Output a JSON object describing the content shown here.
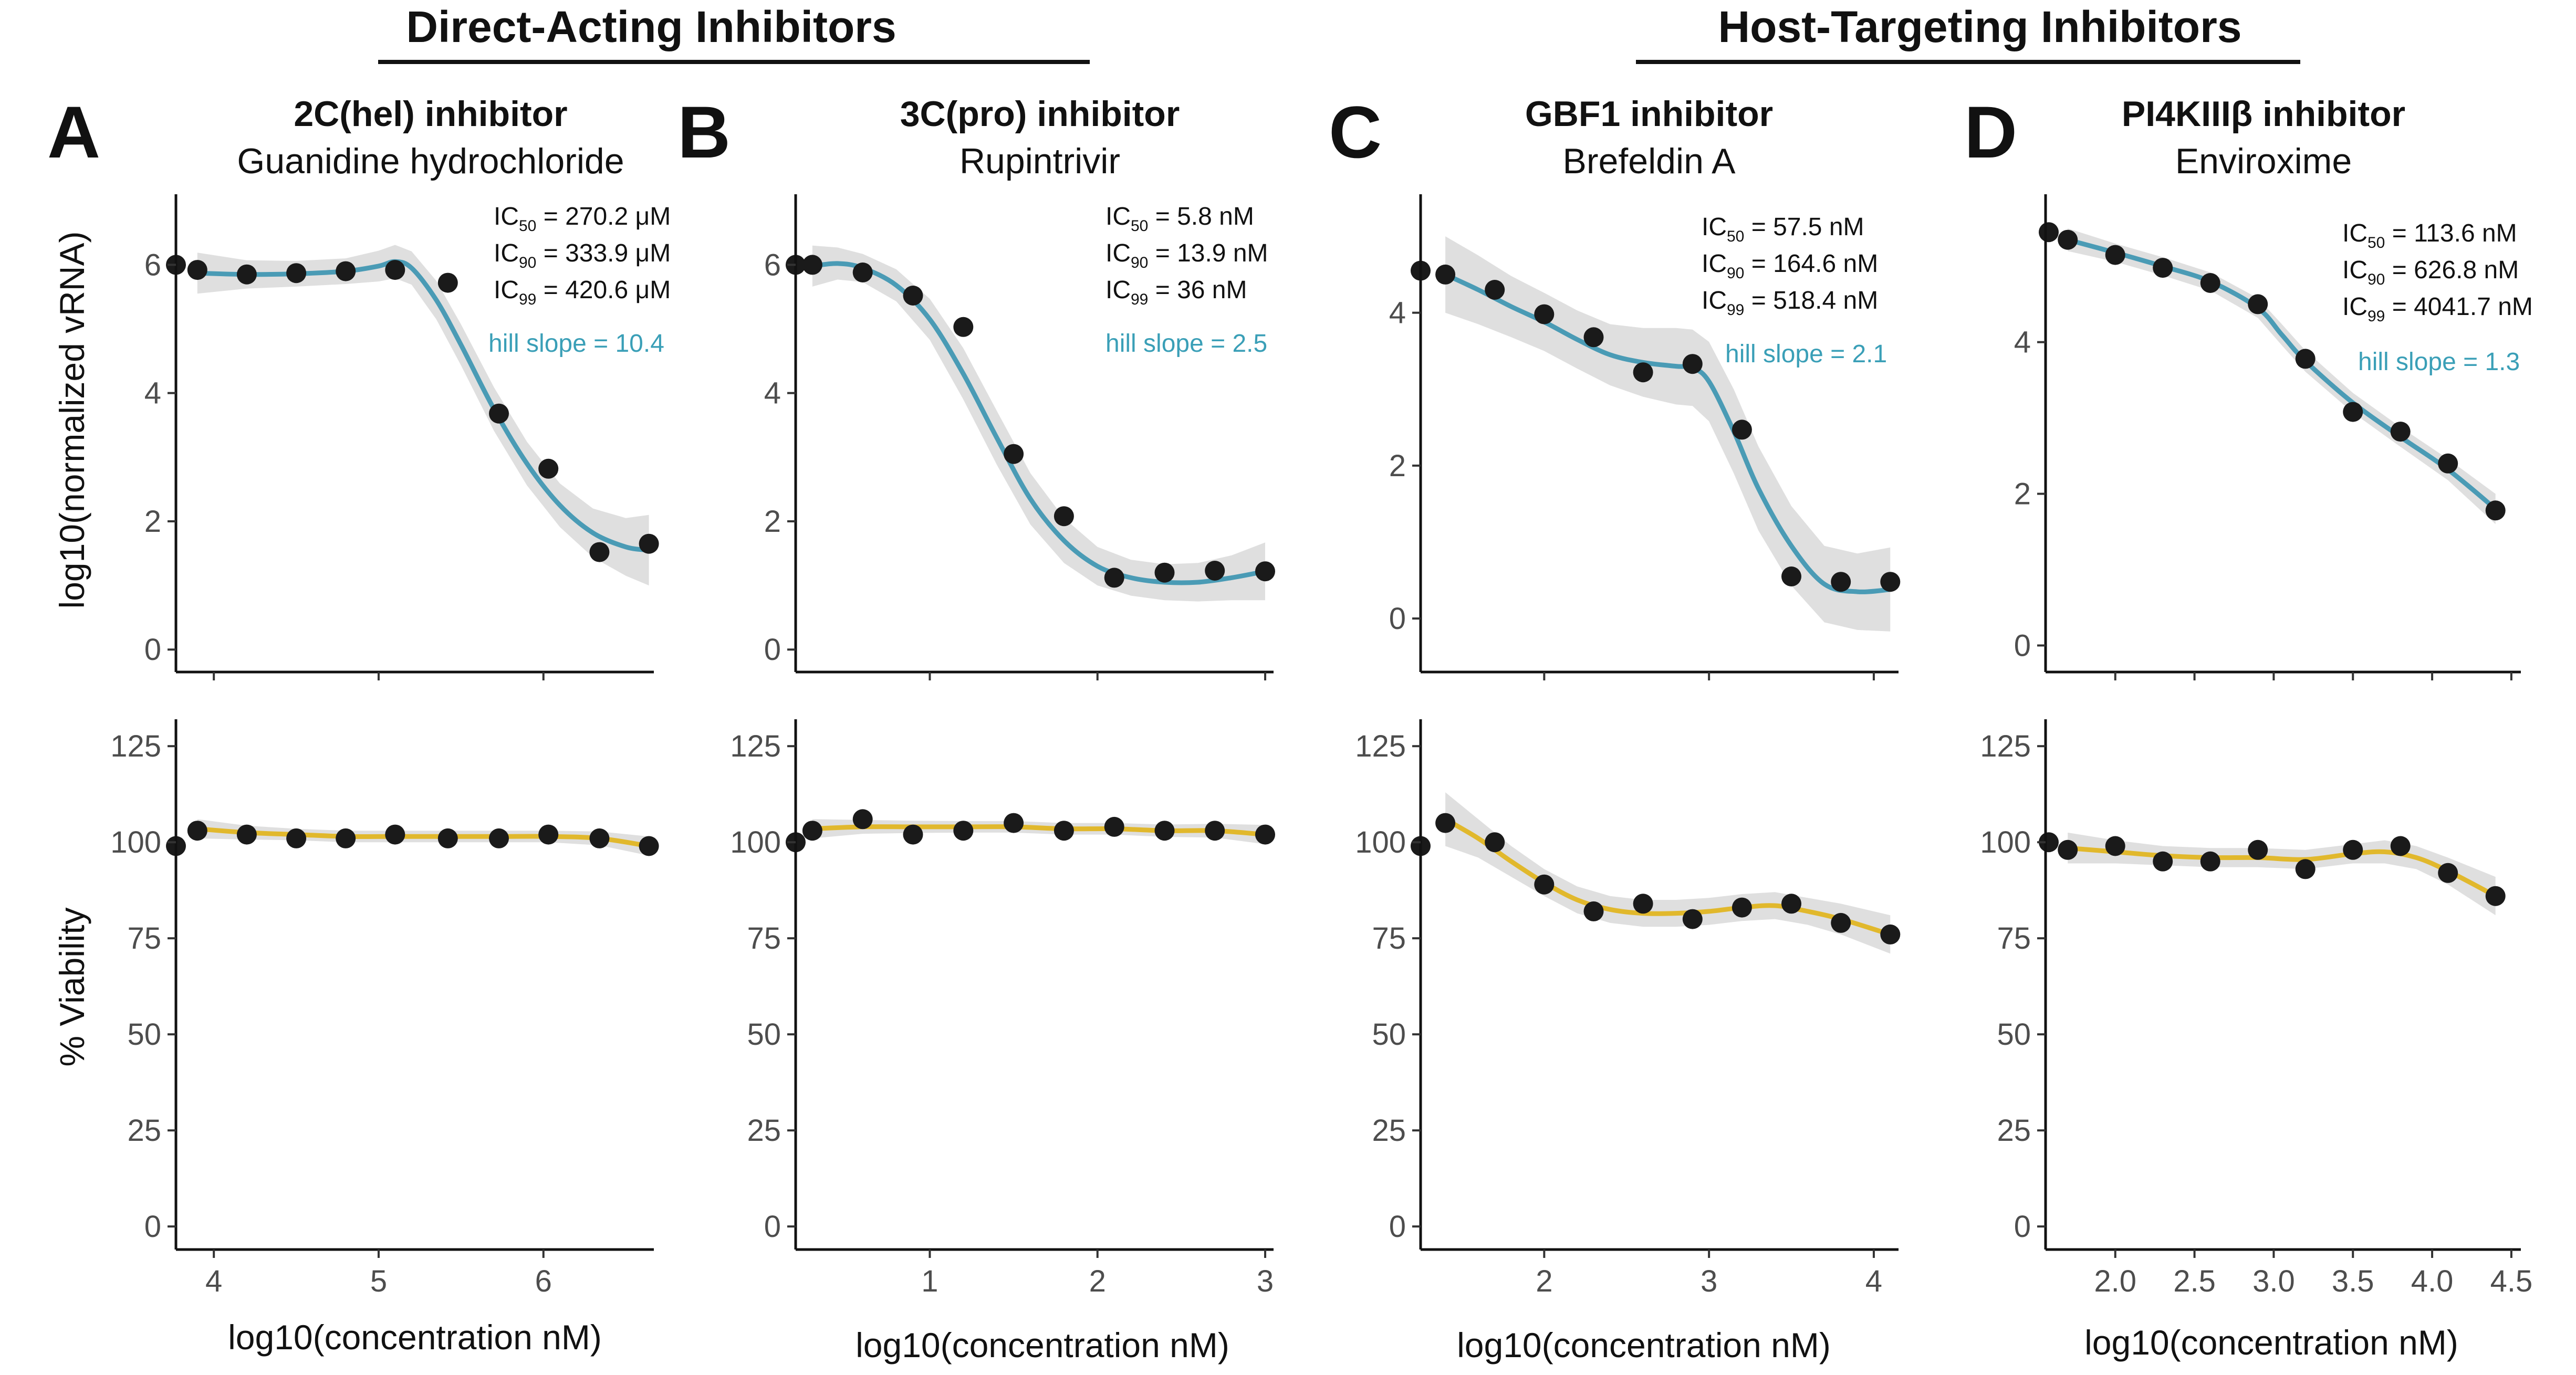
{
  "group_titles": {
    "direct": "Direct-Acting Inhibitors",
    "host": "Host-Targeting Inhibitors"
  },
  "colors": {
    "vrna_line": "#4a9bb5",
    "viability_line": "#e1b82c",
    "band": "#d9d9d9",
    "point": "#1a1a1a",
    "hill_text": "#3a9fb7"
  },
  "axis_labels": {
    "vrna_y": "log10(normalized vRNA)",
    "viability_y": "% Viability",
    "x": "log10(concentration nM)"
  },
  "chart_data": [
    {
      "type": "scatter",
      "panel": "A",
      "title": "2C(hel) inhibitor",
      "subtitle": "Guanidine hydrochloride",
      "xlim": [
        3.77,
        6.67
      ],
      "xticks": [
        "4",
        "5",
        "6"
      ],
      "xtick_values": [
        4,
        5,
        6
      ],
      "ic": {
        "ic50": {
          "label": "IC",
          "sub": "50",
          "value": " = 270.2 μM"
        },
        "ic90": {
          "label": "IC",
          "sub": "90",
          "value": " = 333.9 μM"
        },
        "ic99": {
          "label": "IC",
          "sub": "99",
          "value": " = 420.6 μM"
        }
      },
      "hill": "hill slope = 10.4",
      "vrna": {
        "ylim": [
          -0.35,
          7.1
        ],
        "yticks": [
          "0",
          "2",
          "4",
          "6"
        ],
        "ytick_values": [
          0,
          2,
          4,
          6
        ],
        "x": [
          3.77,
          3.9,
          4.2,
          4.5,
          4.8,
          5.1,
          5.42,
          5.73,
          6.03,
          6.34,
          6.64
        ],
        "y": [
          6.0,
          5.92,
          5.85,
          5.87,
          5.9,
          5.92,
          5.72,
          3.68,
          2.82,
          1.52,
          1.65
        ],
        "fit_x": [
          3.9,
          4.2,
          4.5,
          4.8,
          5.0,
          5.1,
          5.2,
          5.35,
          5.5,
          5.7,
          5.9,
          6.1,
          6.3,
          6.5,
          6.64
        ],
        "fit_y": [
          5.87,
          5.85,
          5.86,
          5.9,
          5.98,
          6.05,
          5.95,
          5.45,
          4.75,
          3.75,
          2.9,
          2.25,
          1.82,
          1.6,
          1.55
        ],
        "band_halfwidth": [
          0.32,
          0.22,
          0.2,
          0.2,
          0.24,
          0.26,
          0.26,
          0.3,
          0.32,
          0.34,
          0.34,
          0.34,
          0.38,
          0.45,
          0.55
        ]
      },
      "viability": {
        "ylim": [
          -6,
          132
        ],
        "yticks": [
          "0",
          "25",
          "50",
          "75",
          "100",
          "125"
        ],
        "ytick_values": [
          0,
          25,
          50,
          75,
          100,
          125
        ],
        "x": [
          3.77,
          3.9,
          4.2,
          4.5,
          4.8,
          5.1,
          5.42,
          5.73,
          6.03,
          6.34,
          6.64
        ],
        "y": [
          99,
          103,
          102,
          101,
          101,
          102,
          101,
          101,
          102,
          101,
          99
        ],
        "fit_x": [
          3.9,
          4.2,
          4.5,
          4.8,
          5.1,
          5.42,
          5.73,
          6.03,
          6.34,
          6.64
        ],
        "fit_y": [
          103.5,
          102.5,
          102,
          101.5,
          101.5,
          101.5,
          101.5,
          101.5,
          101,
          99
        ],
        "band_halfwidth": [
          2.5,
          1.8,
          1.5,
          1.5,
          1.5,
          1.5,
          1.5,
          1.5,
          1.8,
          2.5
        ]
      }
    },
    {
      "type": "scatter",
      "panel": "B",
      "title": "3C(pro) inhibitor",
      "subtitle": "Rupintrivir",
      "xlim": [
        0.2,
        3.05
      ],
      "xticks": [
        "1",
        "2",
        "3"
      ],
      "xtick_values": [
        1,
        2,
        3
      ],
      "ic": {
        "ic50": {
          "label": "IC",
          "sub": "50",
          "value": " = 5.8 nM"
        },
        "ic90": {
          "label": "IC",
          "sub": "90",
          "value": " = 13.9 nM"
        },
        "ic99": {
          "label": "IC",
          "sub": "99",
          "value": " = 36 nM"
        }
      },
      "hill": "hill slope = 2.5",
      "vrna": {
        "ylim": [
          -0.35,
          7.1
        ],
        "yticks": [
          "0",
          "2",
          "4",
          "6"
        ],
        "ytick_values": [
          0,
          2,
          4,
          6
        ],
        "x": [
          0.2,
          0.3,
          0.6,
          0.9,
          1.2,
          1.5,
          1.8,
          2.1,
          2.4,
          2.7,
          3.0
        ],
        "y": [
          6.0,
          6.0,
          5.88,
          5.52,
          5.03,
          3.05,
          2.08,
          1.12,
          1.2,
          1.23,
          1.22
        ],
        "fit_x": [
          0.3,
          0.45,
          0.6,
          0.8,
          1.0,
          1.2,
          1.4,
          1.6,
          1.8,
          2.0,
          2.2,
          2.4,
          2.6,
          2.8,
          3.0
        ],
        "fit_y": [
          5.98,
          6.02,
          5.95,
          5.68,
          5.15,
          4.3,
          3.3,
          2.35,
          1.7,
          1.3,
          1.12,
          1.05,
          1.05,
          1.12,
          1.22
        ],
        "band_halfwidth": [
          0.32,
          0.25,
          0.22,
          0.25,
          0.32,
          0.4,
          0.42,
          0.4,
          0.35,
          0.3,
          0.28,
          0.28,
          0.3,
          0.35,
          0.45
        ]
      },
      "viability": {
        "ylim": [
          -6,
          132
        ],
        "yticks": [
          "0",
          "25",
          "50",
          "75",
          "100",
          "125"
        ],
        "ytick_values": [
          0,
          25,
          50,
          75,
          100,
          125
        ],
        "x": [
          0.2,
          0.3,
          0.6,
          0.9,
          1.2,
          1.5,
          1.8,
          2.1,
          2.4,
          2.7,
          3.0
        ],
        "y": [
          100,
          103,
          106,
          102,
          103,
          105,
          103,
          104,
          103,
          103,
          102
        ],
        "fit_x": [
          0.3,
          0.6,
          0.9,
          1.2,
          1.5,
          1.8,
          2.1,
          2.4,
          2.7,
          3.0
        ],
        "fit_y": [
          103.5,
          104,
          104,
          104,
          104,
          103.5,
          103.5,
          103,
          103,
          102
        ],
        "band_halfwidth": [
          2.5,
          1.8,
          1.6,
          1.5,
          1.5,
          1.5,
          1.5,
          1.6,
          1.8,
          2.5
        ]
      }
    },
    {
      "type": "scatter",
      "panel": "C",
      "title": "GBF1 inhibitor",
      "subtitle": "Brefeldin A",
      "xlim": [
        1.25,
        4.15
      ],
      "xticks": [
        "2",
        "3",
        "4"
      ],
      "xtick_values": [
        2,
        3,
        4
      ],
      "ic": {
        "ic50": {
          "label": "IC",
          "sub": "50",
          "value": " = 57.5 nM"
        },
        "ic90": {
          "label": "IC",
          "sub": "90",
          "value": " = 164.6 nM"
        },
        "ic99": {
          "label": "IC",
          "sub": "99",
          "value": " = 518.4 nM"
        }
      },
      "hill": "hill slope = 2.1",
      "vrna": {
        "ylim": [
          -0.7,
          5.55
        ],
        "yticks": [
          "0",
          "2",
          "4"
        ],
        "ytick_values": [
          0,
          2,
          4
        ],
        "x": [
          1.25,
          1.4,
          1.7,
          2.0,
          2.3,
          2.6,
          2.9,
          3.2,
          3.5,
          3.8,
          4.1
        ],
        "y": [
          4.55,
          4.5,
          4.3,
          3.98,
          3.68,
          3.22,
          3.33,
          2.47,
          0.55,
          0.48,
          0.48
        ],
        "fit_x": [
          1.4,
          1.6,
          1.8,
          2.0,
          2.2,
          2.4,
          2.6,
          2.8,
          2.9,
          3.0,
          3.15,
          3.3,
          3.5,
          3.7,
          3.9,
          4.1
        ],
        "fit_y": [
          4.5,
          4.3,
          4.08,
          3.88,
          3.65,
          3.45,
          3.35,
          3.3,
          3.28,
          3.1,
          2.45,
          1.7,
          0.95,
          0.45,
          0.35,
          0.38
        ],
        "band_halfwidth": [
          0.5,
          0.45,
          0.4,
          0.38,
          0.38,
          0.4,
          0.45,
          0.5,
          0.5,
          0.52,
          0.55,
          0.55,
          0.52,
          0.5,
          0.5,
          0.55
        ]
      },
      "viability": {
        "ylim": [
          -6,
          132
        ],
        "yticks": [
          "0",
          "25",
          "50",
          "75",
          "100",
          "125"
        ],
        "ytick_values": [
          0,
          25,
          50,
          75,
          100,
          125
        ],
        "x": [
          1.25,
          1.4,
          1.7,
          2.0,
          2.3,
          2.6,
          2.9,
          3.2,
          3.5,
          3.8,
          4.1
        ],
        "y": [
          99,
          105,
          100,
          89,
          82,
          84,
          80,
          83,
          84,
          79,
          76
        ],
        "fit_x": [
          1.4,
          1.6,
          1.8,
          2.0,
          2.2,
          2.4,
          2.6,
          2.8,
          3.0,
          3.2,
          3.4,
          3.6,
          3.8,
          4.1
        ],
        "fit_y": [
          106,
          101,
          95,
          89.5,
          85,
          82.5,
          81.5,
          81.5,
          82,
          83,
          83.5,
          82,
          80,
          76
        ],
        "band_halfwidth": [
          7,
          5,
          4,
          3.5,
          3.5,
          3.5,
          3.5,
          3.5,
          3.5,
          3.5,
          3.5,
          3.5,
          4,
          5
        ]
      }
    },
    {
      "type": "scatter",
      "panel": "D",
      "title": "PI4KIIIβ inhibitor",
      "subtitle": "Enviroxime",
      "xlim": [
        1.56,
        4.56
      ],
      "xticks": [
        "2.0",
        "2.5",
        "3.0",
        "3.5",
        "4.0",
        "4.5"
      ],
      "xtick_values": [
        2.0,
        2.5,
        3.0,
        3.5,
        4.0,
        4.5
      ],
      "ic": {
        "ic50": {
          "label": "IC",
          "sub": "50",
          "value": " = 113.6 nM"
        },
        "ic90": {
          "label": "IC",
          "sub": "90",
          "value": " = 626.8 nM"
        },
        "ic99": {
          "label": "IC",
          "sub": "99",
          "value": " = 4041.7 nM"
        }
      },
      "hill": "hill slope = 1.3",
      "vrna": {
        "ylim": [
          -0.35,
          5.95
        ],
        "yticks": [
          "0",
          "2",
          "4"
        ],
        "ytick_values": [
          0,
          2,
          4
        ],
        "x": [
          1.58,
          1.7,
          2.0,
          2.3,
          2.6,
          2.9,
          3.2,
          3.5,
          3.8,
          4.1,
          4.4
        ],
        "y": [
          5.45,
          5.35,
          5.15,
          4.98,
          4.78,
          4.5,
          3.78,
          3.08,
          2.82,
          2.4,
          1.78
        ],
        "fit_x": [
          1.7,
          2.0,
          2.3,
          2.6,
          2.9,
          3.05,
          3.2,
          3.5,
          3.8,
          4.1,
          4.4
        ],
        "fit_y": [
          5.35,
          5.18,
          5.0,
          4.8,
          4.45,
          4.1,
          3.75,
          3.2,
          2.75,
          2.32,
          1.8
        ],
        "band_halfwidth": [
          0.15,
          0.12,
          0.12,
          0.12,
          0.13,
          0.14,
          0.14,
          0.13,
          0.13,
          0.14,
          0.2
        ]
      },
      "viability": {
        "ylim": [
          -6,
          132
        ],
        "yticks": [
          "0",
          "25",
          "50",
          "75",
          "100",
          "125"
        ],
        "ytick_values": [
          0,
          25,
          50,
          75,
          100,
          125
        ],
        "x": [
          1.58,
          1.7,
          2.0,
          2.3,
          2.6,
          2.9,
          3.2,
          3.5,
          3.8,
          4.1,
          4.4
        ],
        "y": [
          100,
          98,
          99,
          95,
          95,
          98,
          93,
          98,
          99,
          92,
          86
        ],
        "fit_x": [
          1.7,
          2.0,
          2.3,
          2.6,
          2.9,
          3.2,
          3.5,
          3.7,
          3.9,
          4.1,
          4.4
        ],
        "fit_y": [
          98.5,
          97.5,
          96.5,
          96,
          96,
          95.5,
          97,
          97.5,
          96,
          92.5,
          86
        ],
        "band_halfwidth": [
          4,
          3,
          2.5,
          2.5,
          2.5,
          2.5,
          2.5,
          3,
          3,
          3.5,
          5
        ]
      }
    }
  ]
}
